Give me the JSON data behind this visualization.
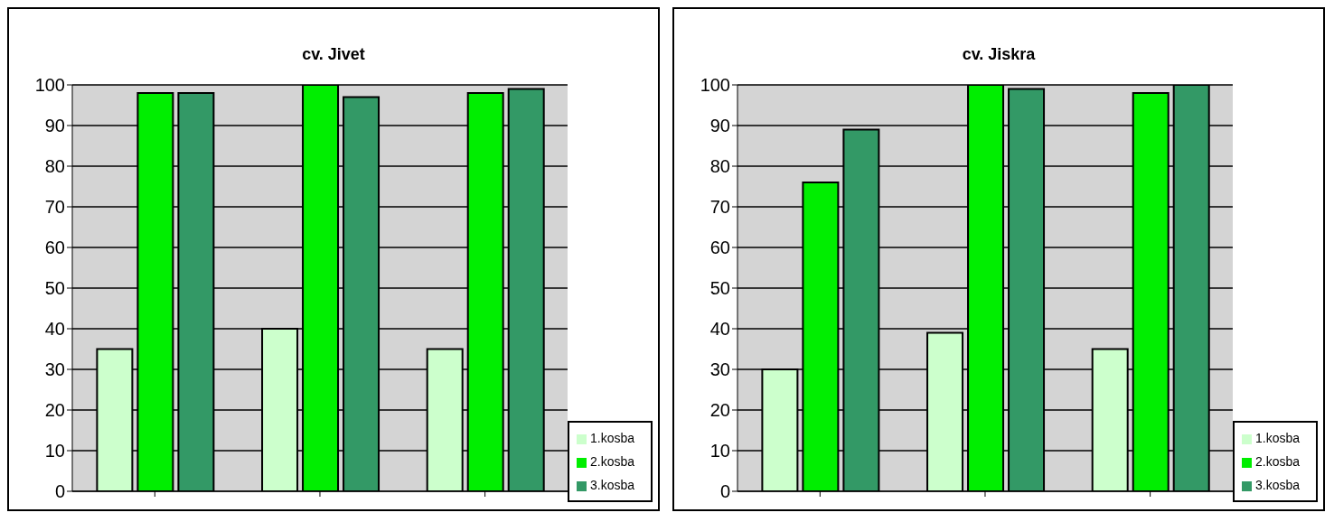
{
  "chart_data": [
    {
      "type": "bar",
      "title": "cv. Jivet",
      "categories": [
        null,
        null,
        null
      ],
      "series": [
        {
          "name": "1.kosba",
          "color": "#ccffcc",
          "values": [
            35,
            40,
            35
          ]
        },
        {
          "name": "2.kosba",
          "color": "#00ee00",
          "values": [
            98,
            100,
            98
          ]
        },
        {
          "name": "3.kosba",
          "color": "#339966",
          "values": [
            98,
            97,
            99
          ]
        }
      ],
      "ylim": [
        0,
        100
      ],
      "yticks": [
        0,
        10,
        20,
        30,
        40,
        50,
        60,
        70,
        80,
        90,
        100
      ],
      "grid": "y",
      "legend": "bottom right",
      "tick_labels": "y"
    },
    {
      "type": "bar",
      "title": "cv. Jiskra",
      "categories": [
        null,
        null,
        null
      ],
      "series": [
        {
          "name": "1.kosba",
          "color": "#ccffcc",
          "values": [
            30,
            39,
            35
          ]
        },
        {
          "name": "2.kosba",
          "color": "#00ee00",
          "values": [
            76,
            100,
            98
          ]
        },
        {
          "name": "3.kosba",
          "color": "#339966",
          "values": [
            89,
            99,
            100
          ]
        }
      ],
      "ylim": [
        0,
        100
      ],
      "yticks": [
        0,
        10,
        20,
        30,
        40,
        50,
        60,
        70,
        80,
        90,
        100
      ],
      "grid": "y",
      "legend": "bottom right",
      "tick_labels": "y"
    }
  ]
}
